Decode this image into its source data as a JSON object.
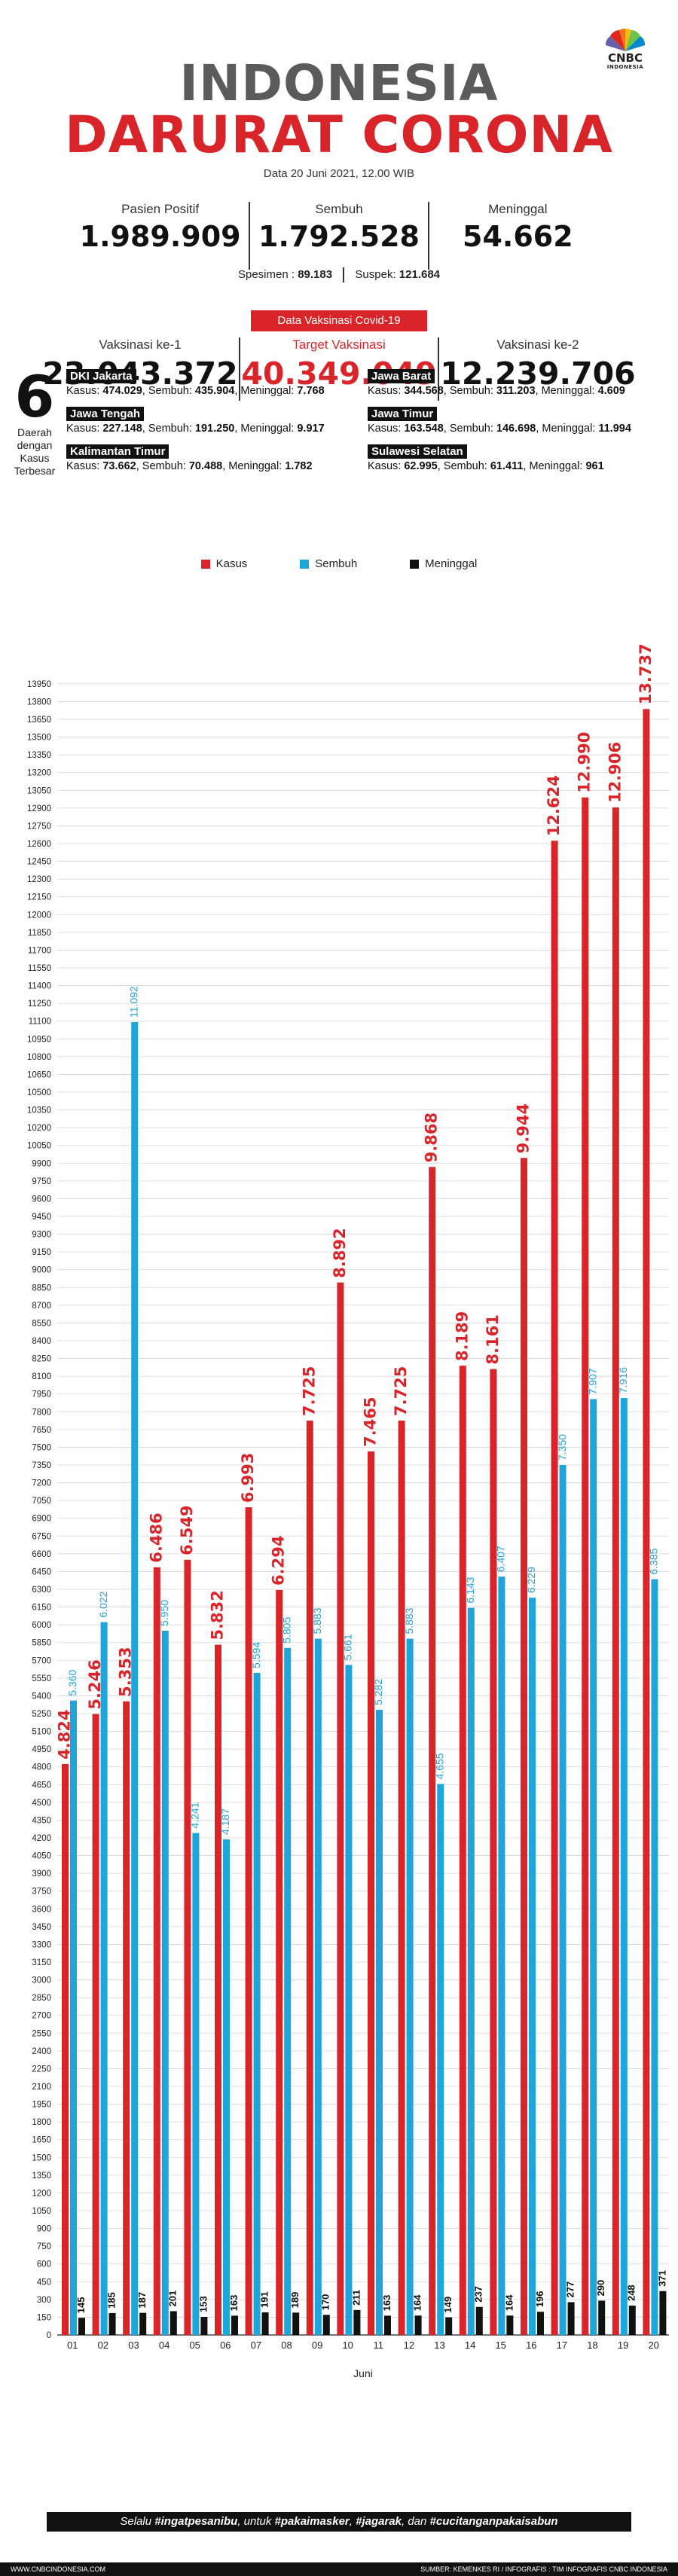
{
  "logo": {
    "name": "CNBC",
    "sub": "INDONESIA"
  },
  "title_line1": "INDONESIA",
  "title_line2": "DARURAT CORONA",
  "datestamp": "Data 20 Juni 2021, 12.00 WIB",
  "stats": [
    {
      "label": "Pasien Positif",
      "value": "1.989.909"
    },
    {
      "label": "Sembuh",
      "value": "1.792.528"
    },
    {
      "label": "Meninggal",
      "value": "54.662"
    }
  ],
  "spesimen": {
    "spesimen_label": "Spesimen :",
    "spesimen_value": "89.183",
    "suspek_label": "Suspek:",
    "suspek_value": "121.684"
  },
  "vaccination": {
    "header": "Data Vaksinasi Covid-19",
    "items": [
      {
        "label": "Vaksinasi ke-1",
        "value": "23.043.372"
      },
      {
        "label": "Target Vaksinasi",
        "value": "40.349.049"
      },
      {
        "label": "Vaksinasi ke-2",
        "value": "12.239.706"
      }
    ]
  },
  "regions_block": {
    "number": "6",
    "description": "Daerah dengan Kasus Terbesar",
    "kasus_label": "Kasus:",
    "sembuh_label": ", Sembuh:",
    "meninggal_label": ", Meninggal:",
    "items": [
      {
        "name": "DKI Jakarta",
        "kasus": "474.029",
        "sembuh": "435.904",
        "meninggal": "7.768"
      },
      {
        "name": "Jawa Barat",
        "kasus": "344.568",
        "sembuh": "311.203",
        "meninggal": "4.609"
      },
      {
        "name": "Jawa Tengah",
        "kasus": "227.148",
        "sembuh": "191.250",
        "meninggal": "9.917"
      },
      {
        "name": "Jawa Timur",
        "kasus": "163.548",
        "sembuh": "146.698",
        "meninggal": "11.994"
      },
      {
        "name": "Kalimantan Timur",
        "kasus": "73.662",
        "sembuh": "70.488",
        "meninggal": "1.782"
      },
      {
        "name": "Sulawesi Selatan",
        "kasus": "62.995",
        "sembuh": "61.411",
        "meninggal": "961"
      }
    ]
  },
  "legend": [
    {
      "label": "Kasus",
      "color": "#d9252a"
    },
    {
      "label": "Sembuh",
      "color": "#1ea5dc"
    },
    {
      "label": "Meninggal",
      "color": "#111111"
    }
  ],
  "chart_data": {
    "type": "bar",
    "categories": [
      "01",
      "02",
      "03",
      "04",
      "05",
      "06",
      "07",
      "08",
      "09",
      "10",
      "11",
      "12",
      "13",
      "14",
      "15",
      "16",
      "17",
      "18",
      "19",
      "20"
    ],
    "xlabel": "Juni",
    "ylabel": "",
    "ylim": [
      0,
      14000
    ],
    "ytick_step": 150,
    "grid": true,
    "legend_position": "top-center",
    "series": [
      {
        "name": "Kasus",
        "color": "#d9252a",
        "values": [
          4824,
          5246,
          5353,
          6486,
          6549,
          5832,
          6993,
          6294,
          7725,
          8892,
          7465,
          7725,
          9868,
          8189,
          8161,
          9944,
          12624,
          12990,
          12906,
          13737
        ],
        "labels": [
          "4.824",
          "5.246",
          "5.353",
          "6.486",
          "6.549",
          "5.832",
          "6.993",
          "6.294",
          "7.725",
          "8.892",
          "7.465",
          "7.725",
          "9.868",
          "8.189",
          "8.161",
          "9.944",
          "12.624",
          "12.990",
          "12.906",
          "13.737"
        ]
      },
      {
        "name": "Sembuh",
        "color": "#1ea5dc",
        "values": [
          5360,
          6022,
          11092,
          5950,
          4241,
          4187,
          5594,
          5805,
          5883,
          5661,
          5282,
          5883,
          4655,
          6143,
          6407,
          6229,
          7350,
          7907,
          7916,
          6385
        ],
        "labels": [
          "5.360",
          "6.022",
          "11.092",
          "5.950",
          "4.241",
          "4.187",
          "5.594",
          "5.805",
          "5.883",
          "5.661",
          "5.282",
          "5.883",
          "4.655",
          "6.143",
          "6.407",
          "6.229",
          "7.350",
          "7.907",
          "7.916",
          "6.385"
        ]
      },
      {
        "name": "Meninggal",
        "color": "#111111",
        "values": [
          145,
          185,
          187,
          201,
          153,
          163,
          191,
          189,
          170,
          211,
          163,
          164,
          149,
          237,
          164,
          196,
          277,
          290,
          248,
          371
        ],
        "labels": [
          "145",
          "185",
          "187",
          "201",
          "153",
          "163",
          "191",
          "189",
          "170",
          "211",
          "163",
          "164",
          "149",
          "237",
          "164",
          "196",
          "277",
          "290",
          "248",
          "371"
        ]
      }
    ]
  },
  "footer": {
    "pre": "Selalu ",
    "tag1": "#ingatpesanibu",
    "mid1": ", untuk ",
    "tag2": "#pakaimasker",
    "mid2": ", ",
    "tag3": "#jagarak",
    "mid3": ", dan ",
    "tag4": "#cucitanganpakaisabun"
  },
  "bottom_bar": {
    "left": "WWW.CNBCINDONESIA.COM",
    "right": "SUMBER: KEMENKES RI / INFOGRAFIS : TIM INFOGRAFIS CNBC INDONESIA"
  }
}
